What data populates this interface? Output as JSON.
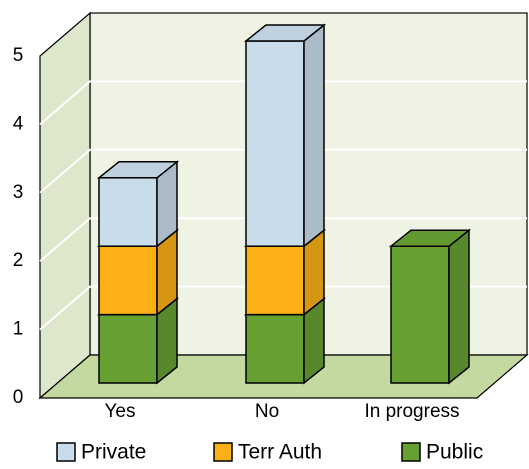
{
  "chart_data": {
    "type": "bar3d_stacked",
    "categories": [
      "Yes",
      "No",
      "In progress"
    ],
    "series": [
      {
        "name": "Private",
        "color": "#c9dcea",
        "values": [
          1,
          3,
          0
        ]
      },
      {
        "name": "Terr Auth",
        "color": "#fbb116",
        "values": [
          1,
          1,
          0
        ]
      },
      {
        "name": "Public",
        "color": "#66a033",
        "values": [
          1,
          1,
          2
        ]
      }
    ],
    "ylim": [
      0,
      5
    ],
    "yticks": [
      0,
      1,
      2,
      3,
      4,
      5
    ],
    "grid": true
  }
}
